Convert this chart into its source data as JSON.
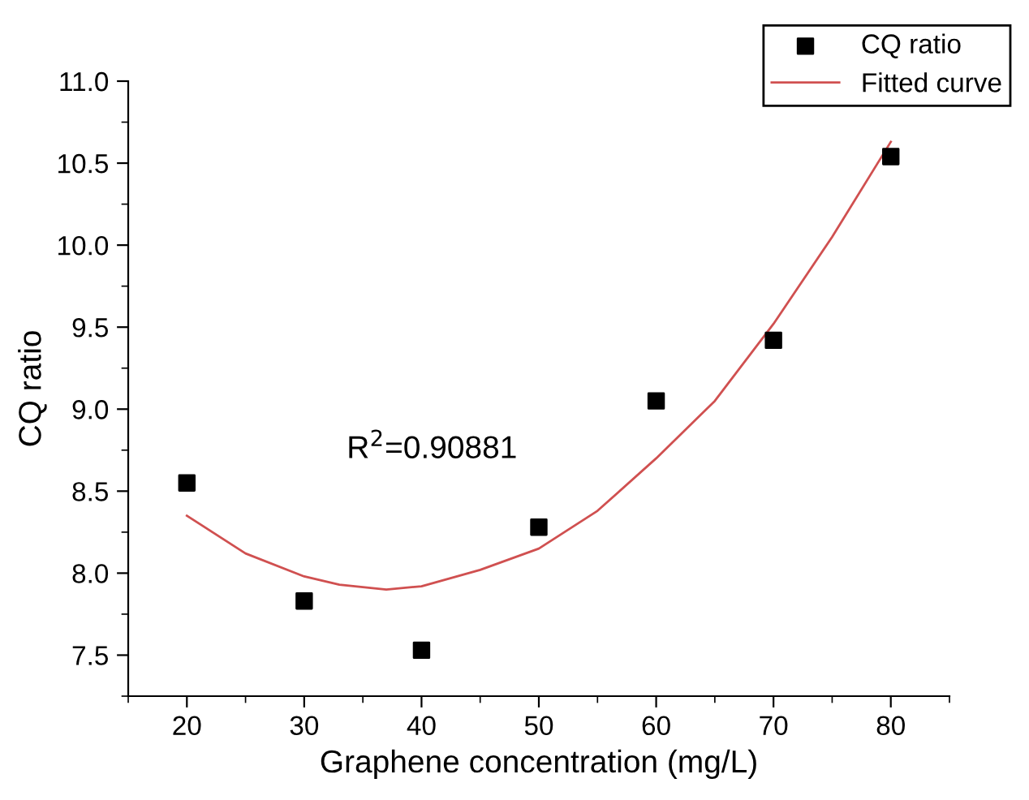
{
  "chart_data": {
    "type": "scatter",
    "xlabel": "Graphene concentration (mg/L)",
    "ylabel": "CQ ratio",
    "xlim": [
      15,
      85
    ],
    "xticks": [
      20,
      30,
      40,
      50,
      60,
      70,
      80
    ],
    "ylim": [
      7.25,
      11.0
    ],
    "yticks": [
      {
        "value": 7.5,
        "label": "7.5"
      },
      {
        "value": 8.0,
        "label": "8.0"
      },
      {
        "value": 8.5,
        "label": "8.5"
      },
      {
        "value": 9.0,
        "label": "9.0"
      },
      {
        "value": 9.5,
        "label": "9.5"
      },
      {
        "value": 10.0,
        "label": "10.0"
      },
      {
        "value": 10.5,
        "label": "10.5"
      },
      {
        "value": 11.0,
        "label": "11.0"
      }
    ],
    "series": [
      {
        "name": "CQ ratio",
        "color": "#000000",
        "marker": "square",
        "x": [
          20,
          30,
          40,
          50,
          60,
          70,
          80
        ],
        "values": [
          8.55,
          7.83,
          7.53,
          8.28,
          9.05,
          9.42,
          10.54
        ]
      },
      {
        "name": "Fitted curve",
        "type": "line",
        "color": "#d05050",
        "marker": "none",
        "line_style": "solid",
        "x": [
          20,
          25,
          30,
          33,
          37,
          40,
          45,
          50,
          55,
          60,
          65,
          70,
          75,
          80
        ],
        "values": [
          8.35,
          8.12,
          7.98,
          7.93,
          7.9,
          7.92,
          8.02,
          8.15,
          8.38,
          8.7,
          9.05,
          9.52,
          10.05,
          10.63
        ]
      }
    ],
    "annotations": [
      "R$^{2}$=0.90881"
    ],
    "legend": "top right",
    "grid": false
  }
}
